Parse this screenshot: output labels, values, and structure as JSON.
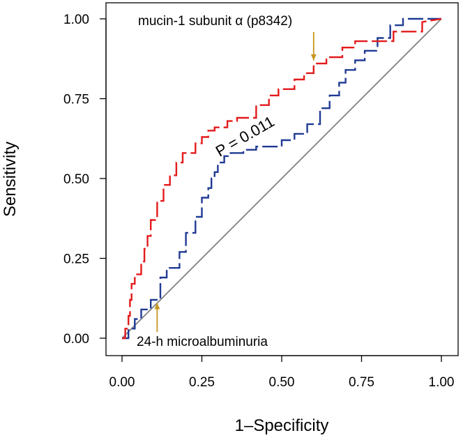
{
  "chart_data": {
    "type": "line",
    "title": "",
    "xlabel": "1–Specificity",
    "ylabel": "Sensitivity",
    "xlim": [
      0,
      1
    ],
    "ylim": [
      0,
      1
    ],
    "xticks": [
      0,
      0.25,
      0.5,
      0.75,
      1
    ],
    "xtick_labels": [
      "0.00",
      "0.25",
      "0.50",
      "0.75",
      "1.00"
    ],
    "yticks": [
      0,
      0.25,
      0.5,
      0.75,
      1
    ],
    "ytick_labels": [
      "0.00",
      "0.25",
      "0.50",
      "0.75",
      "1.00"
    ],
    "grid": false,
    "colors": {
      "mucin": "#e31a1c",
      "microalbuminuria": "#1f3a93",
      "reference": "#808080",
      "arrow": "#c8961e"
    },
    "series": [
      {
        "name": "mucin-1 subunit α (p8342)",
        "color": "#e31a1c",
        "x": [
          0,
          0.01,
          0.01,
          0.02,
          0.02,
          0.025,
          0.025,
          0.03,
          0.03,
          0.04,
          0.04,
          0.06,
          0.06,
          0.07,
          0.07,
          0.08,
          0.08,
          0.09,
          0.09,
          0.11,
          0.11,
          0.13,
          0.13,
          0.15,
          0.15,
          0.17,
          0.17,
          0.19,
          0.19,
          0.23,
          0.23,
          0.25,
          0.25,
          0.27,
          0.27,
          0.29,
          0.29,
          0.33,
          0.33,
          0.36,
          0.36,
          0.42,
          0.42,
          0.46,
          0.46,
          0.49,
          0.49,
          0.54,
          0.54,
          0.57,
          0.57,
          0.6,
          0.6,
          0.64,
          0.64,
          0.69,
          0.69,
          0.73,
          0.73,
          0.85,
          0.85,
          0.94,
          0.94,
          1.0
        ],
        "y": [
          0,
          0,
          0.03,
          0.03,
          0.07,
          0.07,
          0.12,
          0.12,
          0.17,
          0.17,
          0.2,
          0.2,
          0.24,
          0.24,
          0.28,
          0.28,
          0.32,
          0.32,
          0.37,
          0.37,
          0.43,
          0.43,
          0.48,
          0.48,
          0.51,
          0.51,
          0.55,
          0.55,
          0.58,
          0.58,
          0.61,
          0.61,
          0.63,
          0.63,
          0.65,
          0.65,
          0.66,
          0.66,
          0.68,
          0.68,
          0.69,
          0.69,
          0.73,
          0.73,
          0.76,
          0.76,
          0.78,
          0.78,
          0.81,
          0.81,
          0.83,
          0.83,
          0.86,
          0.86,
          0.88,
          0.88,
          0.91,
          0.91,
          0.93,
          0.93,
          0.96,
          0.96,
          0.99,
          1.0
        ]
      },
      {
        "name": "24-h microalbuminuria",
        "color": "#1f3a93",
        "x": [
          0,
          0.02,
          0.02,
          0.04,
          0.04,
          0.06,
          0.06,
          0.09,
          0.09,
          0.12,
          0.12,
          0.14,
          0.14,
          0.18,
          0.18,
          0.2,
          0.2,
          0.23,
          0.23,
          0.25,
          0.25,
          0.27,
          0.27,
          0.28,
          0.28,
          0.29,
          0.29,
          0.3,
          0.3,
          0.32,
          0.32,
          0.34,
          0.34,
          0.38,
          0.38,
          0.42,
          0.42,
          0.5,
          0.5,
          0.54,
          0.54,
          0.58,
          0.58,
          0.62,
          0.62,
          0.65,
          0.65,
          0.68,
          0.68,
          0.7,
          0.7,
          0.73,
          0.73,
          0.76,
          0.76,
          0.8,
          0.8,
          0.84,
          0.84,
          0.88,
          0.88,
          0.91,
          0.91,
          1.0
        ],
        "y": [
          0,
          0,
          0.03,
          0.03,
          0.06,
          0.06,
          0.09,
          0.09,
          0.12,
          0.12,
          0.19,
          0.19,
          0.22,
          0.22,
          0.27,
          0.27,
          0.33,
          0.33,
          0.38,
          0.38,
          0.44,
          0.44,
          0.47,
          0.47,
          0.5,
          0.5,
          0.52,
          0.52,
          0.55,
          0.55,
          0.57,
          0.57,
          0.58,
          0.58,
          0.59,
          0.59,
          0.6,
          0.6,
          0.62,
          0.62,
          0.64,
          0.64,
          0.67,
          0.67,
          0.72,
          0.72,
          0.76,
          0.76,
          0.8,
          0.8,
          0.84,
          0.84,
          0.87,
          0.87,
          0.9,
          0.9,
          0.94,
          0.94,
          0.98,
          0.98,
          1.0,
          1.0,
          1.0,
          1.0
        ]
      }
    ],
    "reference_line": {
      "x": [
        0,
        1
      ],
      "y": [
        0,
        1
      ],
      "color": "#808080"
    },
    "annotations": [
      {
        "text": "mucin-1 subunit α (p8342)",
        "arrow_x": 0.6,
        "arrow_y": 0.865
      },
      {
        "text": "24-h microalbuminuria",
        "arrow_x": 0.11,
        "arrow_y": 0.115
      },
      {
        "text": "P = 0.011"
      }
    ]
  }
}
